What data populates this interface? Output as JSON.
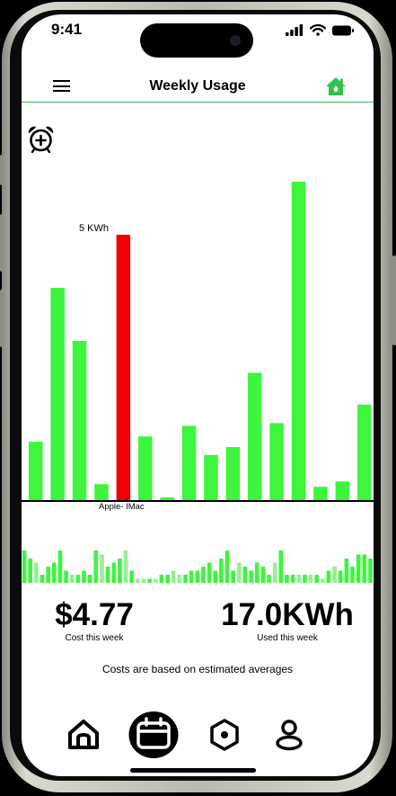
{
  "status_bar": {
    "time": "9:41"
  },
  "header": {
    "title": "Weekly Usage"
  },
  "icons": {
    "menu": "hamburger-menu-icon",
    "home": "green-home-icon",
    "alarm": "alarm-clock-plus-icon",
    "tabs": [
      "home-icon",
      "calendar-icon",
      "hexagon-settings-icon",
      "profile-icon"
    ]
  },
  "colors": {
    "accent": "#34c24a",
    "bar_green": "#3ef53e",
    "bar_highlight": "#f00000",
    "bar_light": "#98ee98"
  },
  "chart_data": {
    "type": "bar",
    "values": [
      1.1,
      4.0,
      3.0,
      0.3,
      5.0,
      1.2,
      0.05,
      1.4,
      0.85,
      1.0,
      2.4,
      1.45,
      6.0,
      0.25,
      0.35,
      1.8
    ],
    "highlight_index": 4,
    "highlight_value_label": "5 KWh",
    "highlight_category_label": "Apple- IMac",
    "ylim": [
      0,
      6.05
    ]
  },
  "mini_chart_data": {
    "values": [
      8,
      6,
      5,
      2,
      4,
      5,
      8,
      3,
      2,
      2,
      3,
      2,
      8,
      7,
      4,
      5,
      6,
      8,
      3,
      1,
      1,
      1,
      1,
      2,
      2,
      3,
      2,
      2,
      3,
      3,
      4,
      5,
      3,
      6,
      8,
      3,
      5,
      4,
      3,
      5,
      4,
      2,
      5,
      8,
      2,
      2,
      2,
      2,
      2,
      2,
      1,
      3,
      4,
      3,
      6,
      4,
      7,
      7,
      6
    ],
    "light_indices": [
      2,
      8,
      13,
      17,
      19,
      20,
      22,
      25,
      26,
      36,
      42,
      46,
      48,
      50,
      52
    ]
  },
  "stats": {
    "cost": {
      "value": "$4.77",
      "caption": "Cost this week"
    },
    "energy": {
      "value": "17.0KWh",
      "caption": "Used this week"
    }
  },
  "note": "Costs are based on estimated averages"
}
